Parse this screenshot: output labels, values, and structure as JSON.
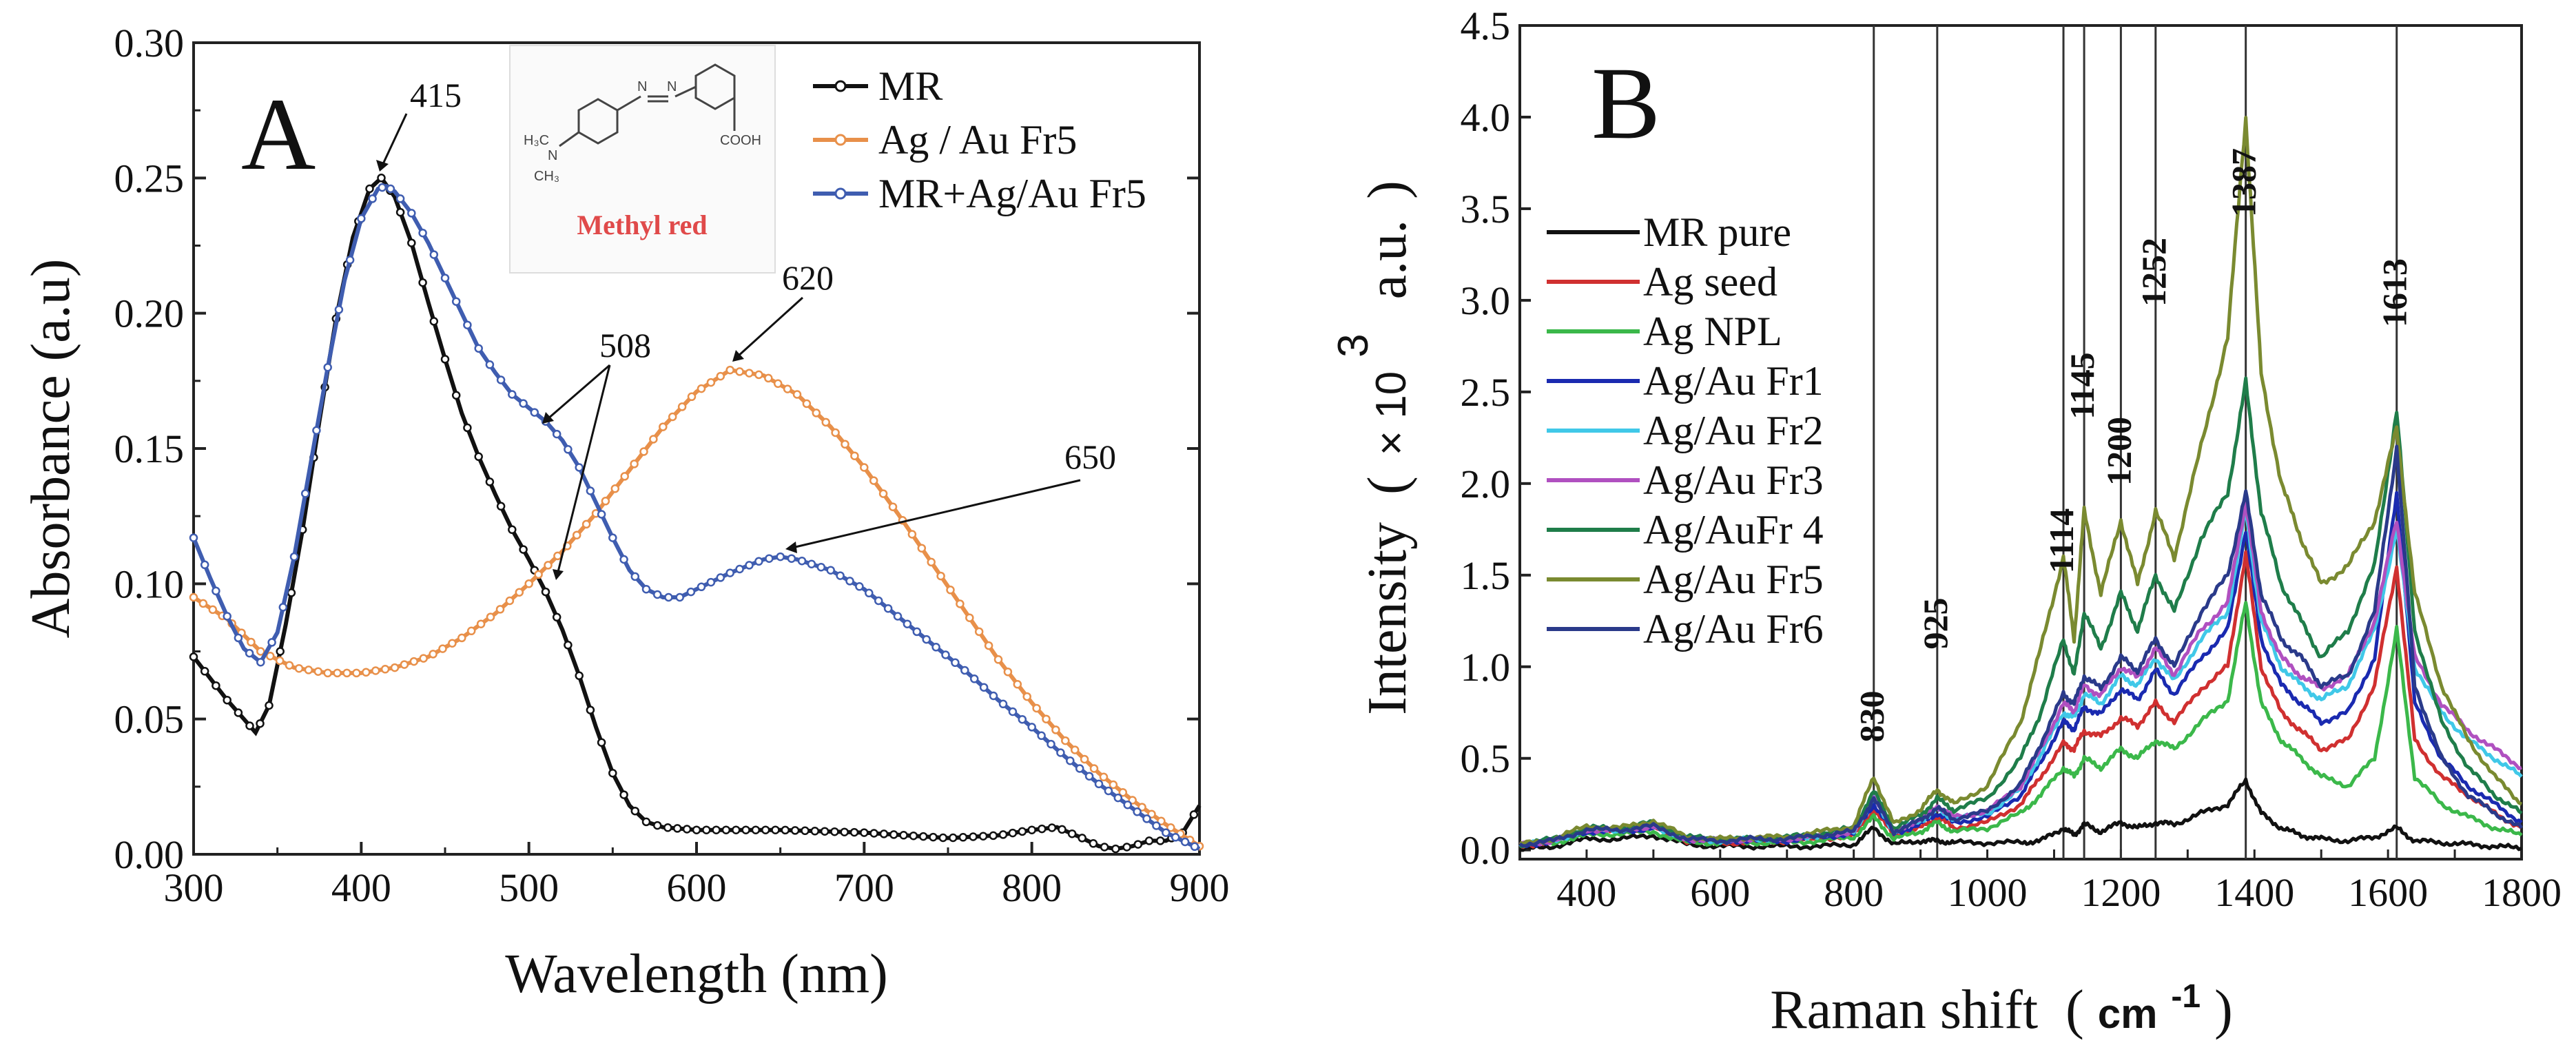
{
  "chart_data": [
    {
      "panel_letter": "A",
      "type": "line",
      "xlabel": "Wavelength (nm)",
      "ylabel": "Absorbance (a.u)",
      "xlim": [
        300,
        900
      ],
      "ylim": [
        0,
        0.3
      ],
      "xticks": [
        "300",
        "400",
        "500",
        "600",
        "700",
        "800",
        "900"
      ],
      "yticks": [
        "0.00",
        "0.05",
        "0.10",
        "0.15",
        "0.20",
        "0.25",
        "0.30"
      ],
      "inset_label": "Methyl red",
      "series": [
        {
          "name": "MR",
          "color": "#111111",
          "x": [
            300,
            310,
            320,
            330,
            337,
            345,
            355,
            365,
            375,
            385,
            395,
            405,
            412,
            420,
            430,
            440,
            450,
            460,
            470,
            480,
            490,
            500,
            510,
            520,
            530,
            540,
            550,
            560,
            570,
            580,
            600,
            650,
            700,
            750,
            780,
            800,
            815,
            830,
            840,
            850,
            860,
            870,
            880,
            890,
            900
          ],
          "y": [
            0.073,
            0.065,
            0.057,
            0.05,
            0.045,
            0.055,
            0.085,
            0.12,
            0.16,
            0.198,
            0.228,
            0.246,
            0.25,
            0.243,
            0.226,
            0.204,
            0.183,
            0.163,
            0.147,
            0.133,
            0.12,
            0.109,
            0.097,
            0.083,
            0.066,
            0.047,
            0.03,
            0.018,
            0.012,
            0.01,
            0.009,
            0.009,
            0.008,
            0.006,
            0.007,
            0.009,
            0.01,
            0.006,
            0.003,
            0.002,
            0.003,
            0.005,
            0.005,
            0.008,
            0.018
          ]
        },
        {
          "name": "Ag / Au Fr5",
          "color": "#e8904a",
          "x": [
            300,
            320,
            340,
            360,
            380,
            400,
            420,
            440,
            460,
            480,
            500,
            520,
            540,
            560,
            580,
            600,
            620,
            640,
            660,
            680,
            700,
            720,
            740,
            760,
            780,
            800,
            820,
            840,
            860,
            880,
            900
          ],
          "y": [
            0.095,
            0.087,
            0.075,
            0.069,
            0.067,
            0.067,
            0.069,
            0.073,
            0.08,
            0.089,
            0.1,
            0.112,
            0.126,
            0.142,
            0.158,
            0.171,
            0.179,
            0.177,
            0.17,
            0.158,
            0.143,
            0.126,
            0.108,
            0.09,
            0.072,
            0.056,
            0.042,
            0.03,
            0.02,
            0.011,
            0.003
          ]
        },
        {
          "name": "MR+Ag/Au  Fr5",
          "color": "#3f5db0",
          "x": [
            300,
            310,
            320,
            330,
            340,
            350,
            360,
            370,
            380,
            390,
            400,
            410,
            415,
            420,
            430,
            440,
            450,
            460,
            470,
            480,
            490,
            500,
            510,
            520,
            530,
            540,
            550,
            560,
            570,
            580,
            590,
            600,
            620,
            640,
            650,
            660,
            680,
            700,
            720,
            740,
            760,
            780,
            800,
            820,
            840,
            860,
            880,
            900
          ],
          "y": [
            0.117,
            0.102,
            0.088,
            0.076,
            0.071,
            0.082,
            0.11,
            0.145,
            0.18,
            0.212,
            0.235,
            0.246,
            0.247,
            0.245,
            0.237,
            0.226,
            0.213,
            0.2,
            0.187,
            0.178,
            0.17,
            0.165,
            0.16,
            0.153,
            0.143,
            0.13,
            0.117,
            0.105,
            0.098,
            0.095,
            0.095,
            0.098,
            0.104,
            0.109,
            0.11,
            0.109,
            0.105,
            0.098,
            0.088,
            0.078,
            0.068,
            0.057,
            0.047,
            0.036,
            0.026,
            0.017,
            0.008,
            0.002
          ]
        }
      ],
      "annotations": [
        "415",
        "620",
        "508",
        "650"
      ]
    },
    {
      "panel_letter": "B",
      "type": "line",
      "xlabel": "Raman shift",
      "xlabel_unit": "cm",
      "xlabel_unit_exp": "-1",
      "ylabel": "Intensity",
      "ylabel_factor": "× 10",
      "ylabel_factor_exp": "3",
      "ylabel_unit": "a.u.",
      "xlim": [
        300,
        1800
      ],
      "ylim": [
        -0.05,
        4.5
      ],
      "xticks": [
        "400",
        "600",
        "800",
        "1000",
        "1200",
        "1400",
        "1600",
        "1800"
      ],
      "yticks": [
        "0.0",
        "0.5",
        "1.0",
        "1.5",
        "2.0",
        "2.5",
        "3.0",
        "3.5",
        "4.0",
        "4.5"
      ],
      "peak_lines": [
        830,
        925,
        1114,
        1145,
        1200,
        1252,
        1387,
        1613
      ],
      "peak_labels": [
        "830",
        "925",
        "1114",
        "1145",
        "1200",
        "1252",
        "1387",
        "1613"
      ],
      "x": [
        300,
        350,
        400,
        450,
        500,
        550,
        600,
        650,
        700,
        750,
        800,
        830,
        860,
        900,
        925,
        950,
        1000,
        1050,
        1080,
        1114,
        1130,
        1145,
        1170,
        1200,
        1225,
        1252,
        1280,
        1320,
        1360,
        1387,
        1410,
        1440,
        1470,
        1500,
        1540,
        1580,
        1613,
        1640,
        1680,
        1720,
        1760,
        1800
      ],
      "series": [
        {
          "name": "MR pure",
          "color": "#111111",
          "values": [
            0.0,
            0.02,
            0.06,
            0.06,
            0.08,
            0.03,
            0.02,
            0.02,
            0.02,
            0.02,
            0.03,
            0.12,
            0.03,
            0.05,
            0.05,
            0.04,
            0.04,
            0.04,
            0.05,
            0.12,
            0.08,
            0.14,
            0.1,
            0.15,
            0.12,
            0.15,
            0.14,
            0.2,
            0.25,
            0.38,
            0.2,
            0.12,
            0.08,
            0.06,
            0.05,
            0.07,
            0.12,
            0.05,
            0.04,
            0.03,
            0.02,
            0.01
          ]
        },
        {
          "name": "Ag seed",
          "color": "#d03030",
          "values": [
            0.02,
            0.05,
            0.1,
            0.1,
            0.12,
            0.05,
            0.04,
            0.04,
            0.05,
            0.06,
            0.08,
            0.22,
            0.08,
            0.12,
            0.18,
            0.12,
            0.15,
            0.25,
            0.4,
            0.58,
            0.55,
            0.65,
            0.62,
            0.72,
            0.68,
            0.8,
            0.7,
            0.88,
            1.0,
            1.62,
            1.0,
            0.75,
            0.65,
            0.55,
            0.6,
            0.9,
            1.55,
            0.6,
            0.4,
            0.3,
            0.2,
            0.12
          ]
        },
        {
          "name": "Ag NPL",
          "color": "#3bb84a",
          "values": [
            0.02,
            0.04,
            0.08,
            0.09,
            0.1,
            0.04,
            0.04,
            0.04,
            0.04,
            0.05,
            0.07,
            0.18,
            0.06,
            0.1,
            0.15,
            0.1,
            0.12,
            0.2,
            0.3,
            0.45,
            0.4,
            0.5,
            0.45,
            0.55,
            0.5,
            0.6,
            0.55,
            0.7,
            0.82,
            1.35,
            0.8,
            0.6,
            0.5,
            0.4,
            0.35,
            0.5,
            1.2,
            0.4,
            0.25,
            0.18,
            0.12,
            0.08
          ]
        },
        {
          "name": "Ag/Au Fr1",
          "color": "#1a2ab0",
          "values": [
            0.02,
            0.05,
            0.1,
            0.1,
            0.12,
            0.06,
            0.05,
            0.05,
            0.05,
            0.07,
            0.09,
            0.25,
            0.09,
            0.14,
            0.2,
            0.15,
            0.18,
            0.3,
            0.48,
            0.7,
            0.66,
            0.78,
            0.74,
            0.88,
            0.82,
            0.98,
            0.85,
            1.05,
            1.2,
            1.75,
            1.15,
            0.9,
            0.8,
            0.7,
            0.75,
            1.05,
            1.95,
            0.8,
            0.5,
            0.35,
            0.25,
            0.15
          ]
        },
        {
          "name": "Ag/Au Fr2",
          "color": "#40c8e8",
          "values": [
            0.03,
            0.05,
            0.11,
            0.11,
            0.13,
            0.06,
            0.05,
            0.06,
            0.06,
            0.08,
            0.1,
            0.28,
            0.1,
            0.16,
            0.22,
            0.17,
            0.2,
            0.33,
            0.52,
            0.75,
            0.72,
            0.85,
            0.8,
            0.95,
            0.9,
            1.05,
            0.92,
            1.15,
            1.3,
            1.85,
            1.25,
            1.0,
            0.9,
            0.82,
            0.9,
            1.2,
            1.75,
            1.0,
            0.75,
            0.6,
            0.5,
            0.4
          ]
        },
        {
          "name": "Ag/Au Fr3",
          "color": "#b050c0",
          "values": [
            0.03,
            0.05,
            0.11,
            0.11,
            0.13,
            0.06,
            0.05,
            0.06,
            0.06,
            0.08,
            0.1,
            0.3,
            0.1,
            0.17,
            0.24,
            0.18,
            0.21,
            0.35,
            0.55,
            0.8,
            0.76,
            0.9,
            0.84,
            1.0,
            0.94,
            1.1,
            0.96,
            1.2,
            1.35,
            1.9,
            1.3,
            1.05,
            0.95,
            0.88,
            0.95,
            1.25,
            1.8,
            1.05,
            0.8,
            0.65,
            0.55,
            0.45
          ]
        },
        {
          "name": "Ag/AuFr 4",
          "color": "#1f7d4a",
          "values": [
            0.03,
            0.06,
            0.12,
            0.12,
            0.15,
            0.07,
            0.06,
            0.06,
            0.07,
            0.09,
            0.12,
            0.32,
            0.12,
            0.19,
            0.28,
            0.22,
            0.28,
            0.5,
            0.75,
            1.15,
            0.95,
            1.3,
            1.1,
            1.4,
            1.2,
            1.5,
            1.3,
            1.7,
            1.95,
            2.55,
            1.85,
            1.45,
            1.25,
            1.05,
            1.2,
            1.55,
            2.4,
            1.2,
            0.7,
            0.45,
            0.3,
            0.2
          ]
        },
        {
          "name": "Ag/Au Fr5",
          "color": "#7a8a30",
          "values": [
            0.03,
            0.06,
            0.13,
            0.12,
            0.16,
            0.07,
            0.06,
            0.07,
            0.07,
            0.1,
            0.13,
            0.4,
            0.14,
            0.22,
            0.33,
            0.25,
            0.35,
            0.7,
            1.1,
            1.6,
            1.15,
            1.85,
            1.4,
            1.8,
            1.45,
            1.85,
            1.6,
            2.2,
            2.8,
            4.0,
            2.6,
            2.0,
            1.7,
            1.45,
            1.55,
            1.8,
            2.3,
            1.4,
            0.9,
            0.6,
            0.4,
            0.25
          ]
        },
        {
          "name": "Ag/Au Fr6",
          "color": "#2a3a8a",
          "values": [
            0.03,
            0.05,
            0.11,
            0.11,
            0.13,
            0.06,
            0.05,
            0.06,
            0.06,
            0.08,
            0.1,
            0.28,
            0.1,
            0.16,
            0.23,
            0.17,
            0.21,
            0.36,
            0.58,
            0.85,
            0.8,
            0.95,
            0.88,
            1.05,
            0.98,
            1.15,
            1.0,
            1.3,
            1.5,
            1.95,
            1.4,
            1.15,
            1.05,
            0.9,
            0.95,
            1.3,
            2.2,
            0.9,
            0.5,
            0.3,
            0.2,
            0.12
          ]
        }
      ]
    }
  ]
}
